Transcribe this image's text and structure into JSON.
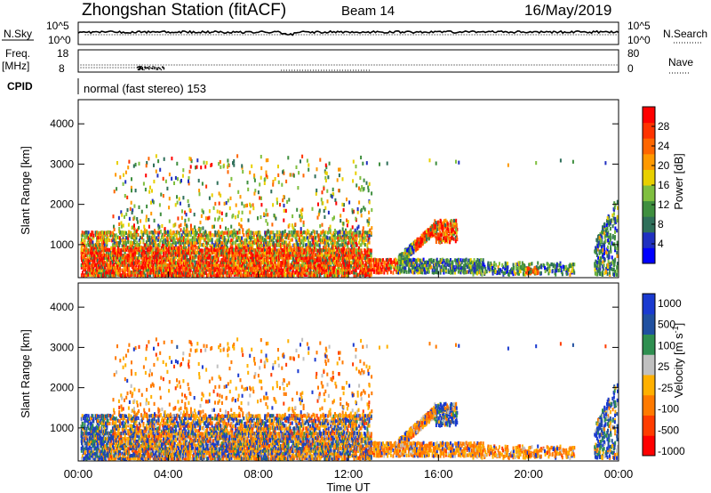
{
  "header": {
    "title": "Zhongshan Station (fitACF)",
    "beam": "Beam 14",
    "date": "16/May/2019"
  },
  "top_panels": {
    "nsky_label": "N.Sky",
    "nsky_ticks": [
      "10^5",
      "10^0"
    ],
    "nsearch_label": "N.Search",
    "nsearch_ticks": [
      "10^5",
      "10^0"
    ],
    "freq_label": "Freq.",
    "freq_unit": "[MHz]",
    "freq_ticks": [
      "18",
      "8"
    ],
    "nave_label": "Nave",
    "nave_ticks": [
      "80",
      "0"
    ],
    "cpid_label": "CPID",
    "cpid_value": "normal (fast stereo) 153"
  },
  "chart_data": [
    {
      "type": "heatmap",
      "name": "power",
      "ylabel": "Slant Range [km]",
      "yticks": [
        1000,
        2000,
        3000,
        4000
      ],
      "ylim": [
        180,
        4600
      ],
      "xlim_hours": [
        0,
        24
      ],
      "colorbar": {
        "label": "Power [dB]",
        "ticks": [
          "28",
          "24",
          "20",
          "16",
          "12",
          "8",
          "4"
        ],
        "range": [
          0,
          32
        ],
        "colors": [
          "#0000ff",
          "#2030c0",
          "#2f6f5a",
          "#3f8f3f",
          "#7fbf3f",
          "#e8d000",
          "#ff9900",
          "#ff6600",
          "#ff3300",
          "#ff0000"
        ]
      }
    },
    {
      "type": "heatmap",
      "name": "velocity",
      "ylabel": "Slant Range [km]",
      "yticks": [
        1000,
        2000,
        3000,
        4000
      ],
      "ylim": [
        180,
        4600
      ],
      "xlim_hours": [
        0,
        24
      ],
      "xticks": [
        "00:00",
        "04:00",
        "08:00",
        "12:00",
        "16:00",
        "20:00",
        "00:00"
      ],
      "xlabel": "Time UT",
      "colorbar": {
        "label": "Velocity [m s^-1]",
        "ticks": [
          "1000",
          "500",
          "100",
          "25",
          "-25",
          "-100",
          "-500",
          "-1000"
        ],
        "colors": [
          "#ff0000",
          "#ff3c00",
          "#ff7a00",
          "#ffb000",
          "#c0c0c0",
          "#2f8f50",
          "#2050a0",
          "#1a3ad0"
        ]
      }
    }
  ]
}
